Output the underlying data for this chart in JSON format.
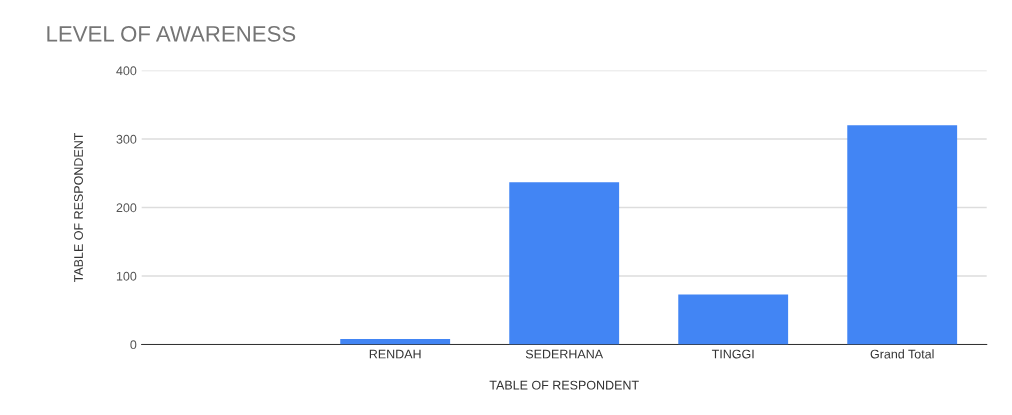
{
  "chart_data": {
    "type": "bar",
    "title": "LEVEL OF AWARENESS",
    "xlabel": "TABLE OF RESPONDENT",
    "ylabel": "TABLE OF RESPONDENT",
    "categories": [
      null,
      "RENDAH",
      "SEDERHANA",
      "TINGGI",
      "Grand Total"
    ],
    "values": [
      null,
      8,
      237,
      73,
      320
    ],
    "color": "#4285f4",
    "ylim": [
      0,
      400
    ],
    "yticks": [
      0,
      100,
      200,
      300,
      400
    ],
    "grid": "y"
  }
}
